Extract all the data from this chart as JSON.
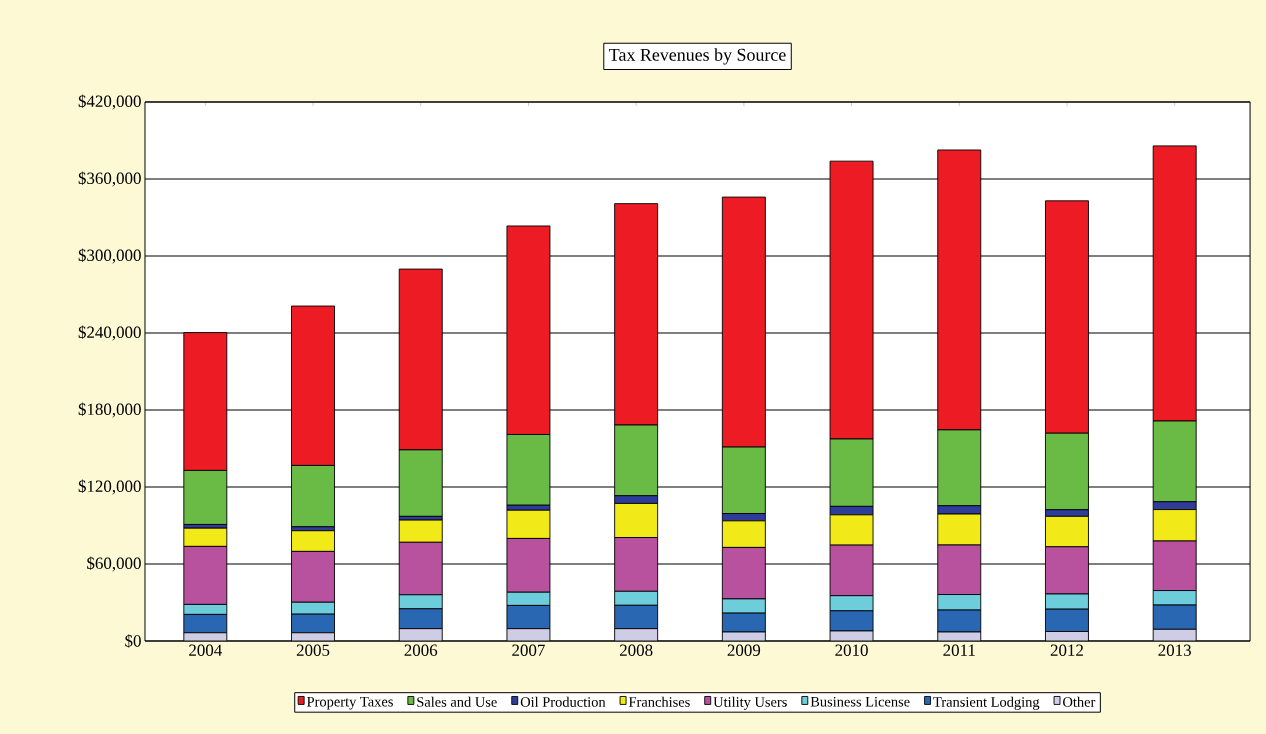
{
  "chart_data": {
    "type": "bar",
    "title": "Tax Revenues by Source",
    "stacked": true,
    "categories": [
      "2004",
      "2005",
      "2006",
      "2007",
      "2008",
      "2009",
      "2010",
      "2011",
      "2012",
      "2013"
    ],
    "series": [
      {
        "name": "Other",
        "color": "#cfcde6",
        "values": [
          6400,
          6400,
          9600,
          9600,
          9600,
          7000,
          7800,
          7000,
          7400,
          9100
        ]
      },
      {
        "name": "Transient Lodging",
        "color": "#2a67b2",
        "values": [
          14300,
          14500,
          15500,
          18100,
          18200,
          14700,
          15700,
          17100,
          17400,
          18900
        ]
      },
      {
        "name": "Business License",
        "color": "#6dcddb",
        "values": [
          7800,
          9300,
          10900,
          10300,
          10900,
          11100,
          11800,
          12100,
          11800,
          11300
        ]
      },
      {
        "name": "Utility Users",
        "color": "#b8529e",
        "values": [
          45200,
          39600,
          40900,
          41900,
          41900,
          40100,
          39400,
          38600,
          36800,
          38600
        ]
      },
      {
        "name": "Franchises",
        "color": "#f2ea18",
        "values": [
          14200,
          16100,
          17300,
          22000,
          26600,
          20700,
          23600,
          24100,
          23700,
          24500
        ]
      },
      {
        "name": "Oil Production",
        "color": "#2e3d99",
        "values": [
          2900,
          3100,
          2900,
          3900,
          6000,
          5700,
          6600,
          6500,
          5200,
          6100
        ]
      },
      {
        "name": "Sales and Use",
        "color": "#6abb46",
        "values": [
          42100,
          47800,
          51800,
          55100,
          55100,
          51800,
          52500,
          59100,
          59600,
          62900
        ]
      },
      {
        "name": "Property Taxes",
        "color": "#ed1c24",
        "values": [
          107400,
          124200,
          140900,
          162500,
          172500,
          194800,
          216500,
          218100,
          181100,
          214400
        ]
      }
    ],
    "ylim": [
      0,
      420000
    ],
    "yticks": [
      {
        "value": 0,
        "label": "$0"
      },
      {
        "value": 60000,
        "label": "$60,000"
      },
      {
        "value": 120000,
        "label": "$120,000"
      },
      {
        "value": 180000,
        "label": "$180,000"
      },
      {
        "value": 240000,
        "label": "$240,000"
      },
      {
        "value": 300000,
        "label": "$300,000"
      },
      {
        "value": 360000,
        "label": "$360,000"
      },
      {
        "value": 420000,
        "label": "$420,000"
      }
    ],
    "grid": "y",
    "legend": "bottom"
  }
}
